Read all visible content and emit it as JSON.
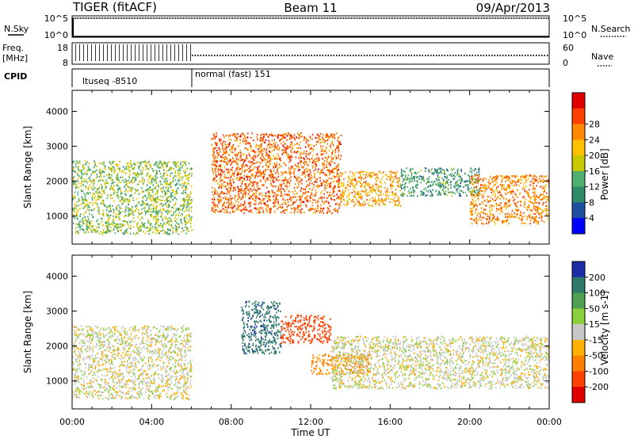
{
  "header": {
    "title": "TIGER (fitACF)",
    "beam": "Beam 11",
    "date": "09/Apr/2013"
  },
  "status_panels": {
    "nsky_label": "N.Sky",
    "nsky_ticks": [
      "10^5",
      "10^0"
    ],
    "nsearch_label": "N.Search",
    "nsearch_ticks": [
      "10^5",
      "10^0"
    ],
    "freq_label_1": "Freq.",
    "freq_label_2": "[MHz]",
    "freq_ticks": [
      "18",
      "8"
    ],
    "nave_label": "Nave",
    "nave_ticks": [
      "60",
      "0"
    ],
    "cpid_label": "CPID",
    "cpid_segments": [
      "ltuseq -8510",
      "normal (fast) 151"
    ]
  },
  "chart_data": [
    {
      "type": "heatmap",
      "name": "power",
      "xlabel": "",
      "ylabel": "Slant Range [km]",
      "yticks": [
        "1000",
        "2000",
        "3000",
        "4000"
      ],
      "ylim": [
        200,
        4600
      ],
      "xlim_hours": [
        0,
        24
      ],
      "colorbar_label": "Power [dB]",
      "colorbar_ticks": [
        "4",
        "8",
        "12",
        "16",
        "20",
        "24",
        "28"
      ],
      "colorbar_colors": [
        "#0000ff",
        "#1e4fa0",
        "#2f8a66",
        "#4fb070",
        "#c8c800",
        "#ffc000",
        "#ff8800",
        "#ff4000",
        "#e00000"
      ],
      "features": [
        {
          "start_h": 0.0,
          "end_h": 6.0,
          "low_km": 500,
          "high_km": 2600,
          "value_db": 14
        },
        {
          "start_h": 7.0,
          "end_h": 13.5,
          "low_km": 1100,
          "high_km": 3400,
          "value_db": 26
        },
        {
          "start_h": 13.5,
          "end_h": 16.5,
          "low_km": 1300,
          "high_km": 2300,
          "value_db": 22
        },
        {
          "start_h": 16.5,
          "end_h": 20.5,
          "low_km": 1600,
          "high_km": 2400,
          "value_db": 10
        },
        {
          "start_h": 20.0,
          "end_h": 24.0,
          "low_km": 800,
          "high_km": 2200,
          "value_db": 24
        }
      ]
    },
    {
      "type": "heatmap",
      "name": "velocity",
      "xlabel": "Time UT",
      "ylabel": "Slant Range [km]",
      "yticks": [
        "1000",
        "2000",
        "3000",
        "4000"
      ],
      "ylim": [
        200,
        4600
      ],
      "xticks": [
        "00:00",
        "04:00",
        "08:00",
        "12:00",
        "16:00",
        "20:00",
        "00:00"
      ],
      "xlim_hours": [
        0,
        24
      ],
      "colorbar_label": "Velocity [m s-1]",
      "colorbar_ticks": [
        "200",
        "100",
        "50",
        "15",
        "-15",
        "-50",
        "-100",
        "-200"
      ],
      "colorbar_colors": [
        "#1c2fa8",
        "#2d7a6a",
        "#4fa050",
        "#8ccf3c",
        "#c8c8c8",
        "#ffb000",
        "#ff8000",
        "#ff4000",
        "#e00000"
      ],
      "features": [
        {
          "start_h": 0.0,
          "end_h": 6.0,
          "low_km": 500,
          "high_km": 2600,
          "value_ms": 0
        },
        {
          "start_h": 8.5,
          "end_h": 10.5,
          "low_km": 1800,
          "high_km": 3300,
          "value_ms": 180
        },
        {
          "start_h": 10.5,
          "end_h": 13.0,
          "low_km": 2100,
          "high_km": 2900,
          "value_ms": -150
        },
        {
          "start_h": 12.0,
          "end_h": 15.0,
          "low_km": 1200,
          "high_km": 1800,
          "value_ms": -70
        },
        {
          "start_h": 13.0,
          "end_h": 24.0,
          "low_km": 800,
          "high_km": 2300,
          "value_ms": 0
        }
      ]
    }
  ]
}
